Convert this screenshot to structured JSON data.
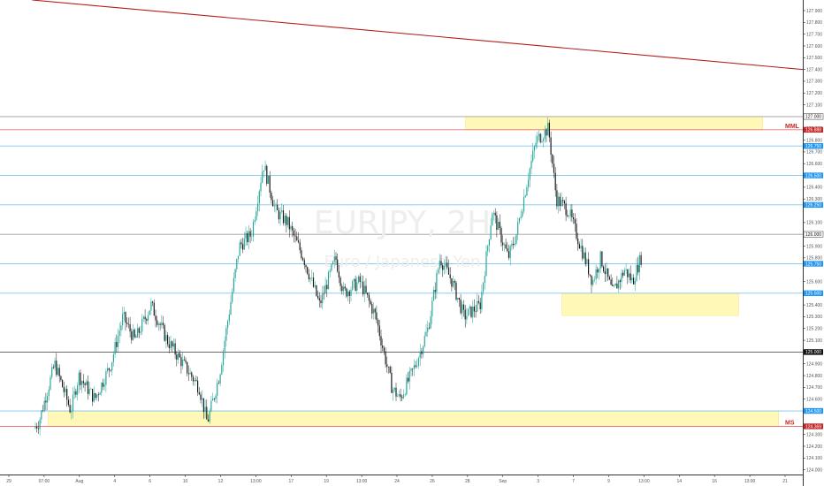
{
  "chart_data": {
    "type": "candlestick",
    "symbol": "EURJPY, 2H",
    "watermark_title": "EURJPY, 2H",
    "watermark_subtitle": "Euro / Japanese Yen",
    "ylim": [
      123.96,
      127.99
    ],
    "y_ticks": [
      "127.900",
      "127.800",
      "127.700",
      "127.600",
      "127.500",
      "127.400",
      "127.300",
      "127.200",
      "127.100",
      "126.900",
      "126.800",
      "126.700",
      "126.600",
      "126.400",
      "126.300",
      "126.100",
      "125.900",
      "125.800",
      "125.600",
      "125.400",
      "125.300",
      "125.200",
      "125.100",
      "124.900",
      "124.800",
      "124.700",
      "124.600",
      "124.300",
      "124.200",
      "124.100",
      "124.000"
    ],
    "x_ticks": [
      "29",
      "07:00",
      "Aug",
      "4",
      "6",
      "10",
      "12",
      "13:00",
      "17",
      "19",
      "13:00",
      "24",
      "26",
      "28",
      "Sep",
      "3",
      "7",
      "9",
      "13:00",
      "14",
      "16",
      "13:00",
      "21"
    ],
    "colors": {
      "up": "#26a69a",
      "down": "#1a1a1a",
      "zone_fill": "#fff59d",
      "blue_line": "#7ec3ec",
      "red_line": "#e57373",
      "gray_line": "#9e9e9e",
      "black_line": "#555555",
      "trend_line": "#b71c1c",
      "label_blue": "#2196f3",
      "label_red": "#c62828",
      "label_black": "#111111",
      "level_text": "#c62828"
    },
    "horizontal_levels": [
      {
        "price": 127.0,
        "label": "127.000",
        "style": "gray"
      },
      {
        "price": 126.888,
        "label": "126.888",
        "style": "red",
        "name": "MML"
      },
      {
        "price": 126.75,
        "label": "126.750",
        "style": "blue"
      },
      {
        "price": 126.5,
        "label": "126.500",
        "style": "blue"
      },
      {
        "price": 126.25,
        "label": "126.250",
        "style": "blue"
      },
      {
        "price": 126.0,
        "label": "126.000",
        "style": "gray"
      },
      {
        "price": 125.75,
        "label": "125.750",
        "style": "blue"
      },
      {
        "price": 125.5,
        "label": "125.500",
        "style": "blue"
      },
      {
        "price": 125.0,
        "label": "125.000",
        "style": "black"
      },
      {
        "price": 124.5,
        "label": "124.500",
        "style": "blue"
      },
      {
        "price": 124.369,
        "label": "124.369",
        "style": "red",
        "name": "MS"
      }
    ],
    "zones": [
      {
        "price_top": 127.0,
        "price_bottom": 126.89,
        "from_time": 0.58,
        "to_time": 0.95
      },
      {
        "price_top": 125.5,
        "price_bottom": 125.31,
        "from_time": 0.7,
        "to_time": 0.92
      },
      {
        "price_top": 124.5,
        "price_bottom": 124.37,
        "from_time": 0.06,
        "to_time": 0.97
      }
    ],
    "trendline": {
      "from_time": 0.04,
      "from_price": 127.99,
      "to_time": 1.0,
      "to_price": 127.4
    },
    "price_path": [
      [
        0.0,
        124.0
      ],
      [
        0.05,
        124.4
      ],
      [
        0.07,
        124.9
      ],
      [
        0.09,
        124.5
      ],
      [
        0.1,
        124.8
      ],
      [
        0.12,
        124.6
      ],
      [
        0.14,
        124.9
      ],
      [
        0.155,
        125.3
      ],
      [
        0.17,
        125.1
      ],
      [
        0.19,
        125.4
      ],
      [
        0.21,
        125.1
      ],
      [
        0.23,
        124.9
      ],
      [
        0.25,
        124.7
      ],
      [
        0.26,
        124.4
      ],
      [
        0.275,
        124.8
      ],
      [
        0.3,
        125.9
      ],
      [
        0.315,
        126.0
      ],
      [
        0.33,
        126.6
      ],
      [
        0.345,
        126.2
      ],
      [
        0.36,
        126.1
      ],
      [
        0.38,
        125.8
      ],
      [
        0.4,
        125.4
      ],
      [
        0.42,
        125.8
      ],
      [
        0.43,
        125.5
      ],
      [
        0.45,
        125.6
      ],
      [
        0.47,
        125.3
      ],
      [
        0.49,
        124.7
      ],
      [
        0.5,
        124.6
      ],
      [
        0.52,
        124.9
      ],
      [
        0.535,
        125.2
      ],
      [
        0.55,
        125.8
      ],
      [
        0.565,
        125.6
      ],
      [
        0.58,
        125.3
      ],
      [
        0.6,
        125.4
      ],
      [
        0.615,
        126.2
      ],
      [
        0.635,
        125.8
      ],
      [
        0.645,
        126.0
      ],
      [
        0.66,
        126.5
      ],
      [
        0.67,
        126.8
      ],
      [
        0.685,
        126.9
      ],
      [
        0.695,
        126.3
      ],
      [
        0.71,
        126.2
      ],
      [
        0.725,
        125.9
      ],
      [
        0.74,
        125.6
      ],
      [
        0.75,
        125.8
      ],
      [
        0.765,
        125.5
      ],
      [
        0.78,
        125.7
      ],
      [
        0.79,
        125.6
      ],
      [
        0.8,
        125.8
      ]
    ]
  }
}
